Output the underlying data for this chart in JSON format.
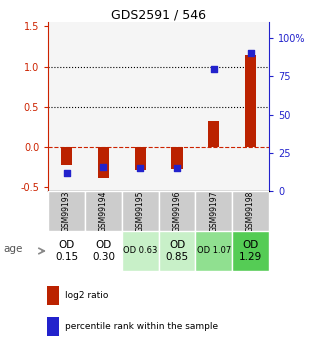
{
  "title": "GDS2591 / 546",
  "samples": [
    "GSM99193",
    "GSM99194",
    "GSM99195",
    "GSM99196",
    "GSM99197",
    "GSM99198"
  ],
  "log2_ratios": [
    -0.22,
    -0.38,
    -0.28,
    -0.27,
    0.33,
    1.15
  ],
  "percentile_ranks": [
    12,
    16,
    15,
    15,
    80,
    90
  ],
  "ylim_left": [
    -0.55,
    1.55
  ],
  "ylim_right": [
    0,
    110
  ],
  "yticks_left": [
    -0.5,
    0.0,
    0.5,
    1.0,
    1.5
  ],
  "yticks_right": [
    0,
    25,
    50,
    75,
    100
  ],
  "ytick_labels_right": [
    "0",
    "25",
    "50",
    "75",
    "100%"
  ],
  "hlines": [
    0.5,
    1.0
  ],
  "age_labels": [
    "OD\n0.15",
    "OD\n0.30",
    "OD 0.63",
    "OD\n0.85",
    "OD 1.07",
    "OD\n1.29"
  ],
  "age_fontsize": [
    7.5,
    7.5,
    6.0,
    7.5,
    6.0,
    7.5
  ],
  "age_bg_colors": [
    "#ffffff",
    "#ffffff",
    "#c8f0c8",
    "#c8f0c8",
    "#90e090",
    "#55cc55"
  ],
  "bar_color": "#bb2200",
  "dot_color": "#2222cc",
  "bar_width": 0.3,
  "dot_size": 18,
  "legend_items": [
    "log2 ratio",
    "percentile rank within the sample"
  ],
  "background_plot": "#f5f5f5",
  "left_axis_color": "#cc2200",
  "right_axis_color": "#2222cc",
  "sample_bg_color": "#cccccc",
  "zero_line_color": "#cc2200",
  "hline_color": "black"
}
